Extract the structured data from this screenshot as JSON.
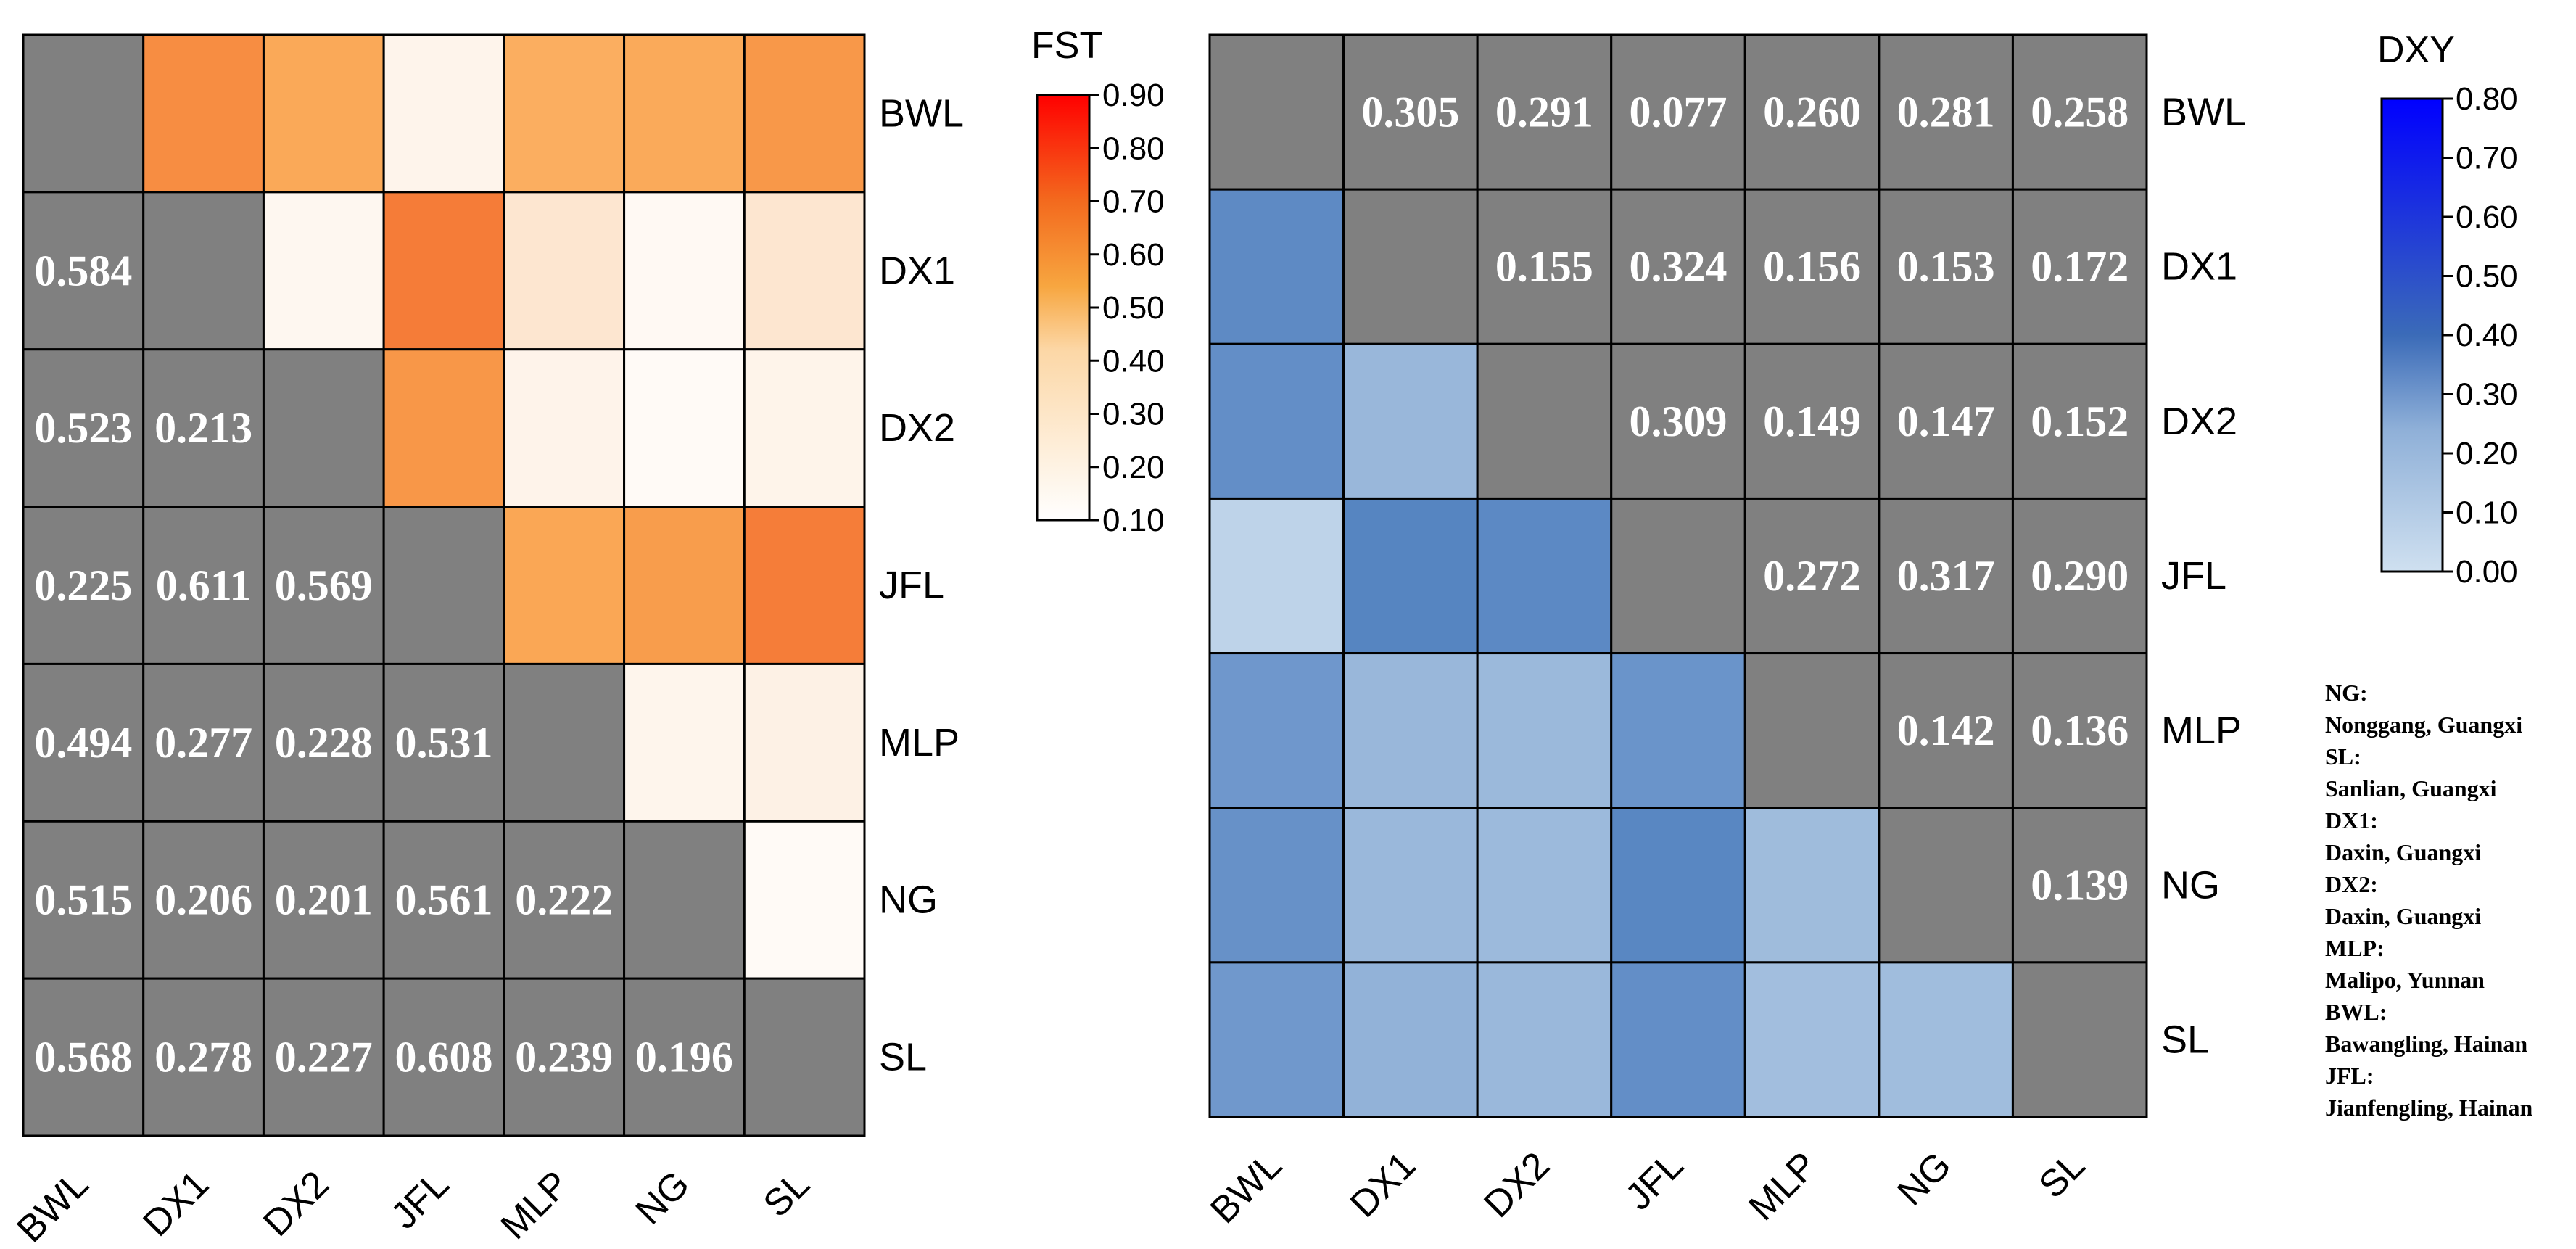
{
  "chart_data": [
    {
      "type": "heatmap",
      "title": "FST",
      "metric": "FST",
      "populations": [
        "BWL",
        "DX1",
        "DX2",
        "JFL",
        "MLP",
        "NG",
        "SL"
      ],
      "row_labels": [
        "BWL",
        "DX1",
        "DX2",
        "JFL",
        "MLP",
        "NG",
        "SL"
      ],
      "col_labels": [
        "BWL",
        "DX1",
        "DX2",
        "JFL",
        "MLP",
        "NG",
        "SL"
      ],
      "values": [
        [
          null,
          0.584,
          0.523,
          0.225,
          0.494,
          0.515,
          0.568
        ],
        [
          0.584,
          null,
          0.213,
          0.611,
          0.277,
          0.206,
          0.278
        ],
        [
          0.523,
          0.213,
          null,
          0.569,
          0.228,
          0.201,
          0.227
        ],
        [
          0.225,
          0.611,
          0.569,
          null,
          0.531,
          0.561,
          0.608
        ],
        [
          0.494,
          0.277,
          0.228,
          0.531,
          null,
          0.222,
          0.239
        ],
        [
          0.515,
          0.206,
          0.201,
          0.561,
          0.222,
          null,
          0.196
        ],
        [
          0.568,
          0.278,
          0.227,
          0.608,
          0.239,
          0.196,
          null
        ]
      ],
      "labeled_triangle": "lower",
      "colored_triangle": "upper",
      "colorbar": {
        "title": "FST",
        "min": 0.1,
        "max": 0.9,
        "ticks": [
          "0.90",
          "0.80",
          "0.70",
          "0.60",
          "0.50",
          "0.40",
          "0.30",
          "0.20",
          "0.10"
        ],
        "colors": [
          "#ffffff",
          "#f7a640",
          "#ff0000"
        ]
      },
      "diagonal_color": "#808080"
    },
    {
      "type": "heatmap",
      "title": "DXY",
      "metric": "DXY",
      "populations": [
        "BWL",
        "DX1",
        "DX2",
        "JFL",
        "MLP",
        "NG",
        "SL"
      ],
      "row_labels": [
        "BWL",
        "DX1",
        "DX2",
        "JFL",
        "MLP",
        "NG",
        "SL"
      ],
      "col_labels": [
        "BWL",
        "DX1",
        "DX2",
        "JFL",
        "MLP",
        "NG",
        "SL"
      ],
      "values": [
        [
          null,
          0.305,
          0.291,
          0.077,
          0.26,
          0.281,
          0.258
        ],
        [
          0.305,
          null,
          0.155,
          0.324,
          0.156,
          0.153,
          0.172
        ],
        [
          0.291,
          0.155,
          null,
          0.309,
          0.149,
          0.147,
          0.152
        ],
        [
          0.077,
          0.324,
          0.309,
          null,
          0.272,
          0.317,
          0.29
        ],
        [
          0.26,
          0.156,
          0.149,
          0.272,
          null,
          0.142,
          0.136
        ],
        [
          0.281,
          0.153,
          0.147,
          0.317,
          0.142,
          null,
          0.139
        ],
        [
          0.258,
          0.172,
          0.152,
          0.29,
          0.136,
          0.139,
          null
        ]
      ],
      "labeled_triangle": "upper",
      "colored_triangle": "lower",
      "colorbar": {
        "title": "DXY",
        "min": 0.0,
        "max": 0.8,
        "ticks": [
          "0.80",
          "0.70",
          "0.60",
          "0.50",
          "0.40",
          "0.30",
          "0.20",
          "0.10",
          "0.00"
        ],
        "colors": [
          "#cfe0f0",
          "#5a86c0",
          "#0000ff"
        ]
      },
      "diagonal_color": "#808080"
    }
  ],
  "legend": [
    {
      "code": "NG:",
      "place": "Nonggang, Guangxi"
    },
    {
      "code": "SL:",
      "place": "Sanlian, Guangxi"
    },
    {
      "code": "DX1:",
      "place": "Daxin, Guangxi"
    },
    {
      "code": "DX2:",
      "place": "Daxin, Guangxi"
    },
    {
      "code": "MLP:",
      "place": "Malipo, Yunnan"
    },
    {
      "code": "BWL:",
      "place": "Bawangling, Hainan"
    },
    {
      "code": "JFL:",
      "place": "Jianfengling, Hainan"
    }
  ]
}
